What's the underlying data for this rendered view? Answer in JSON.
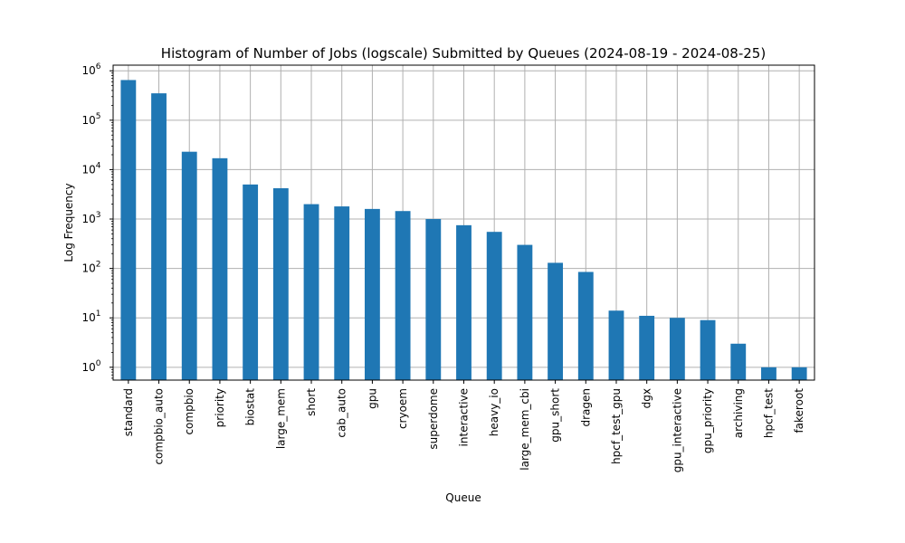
{
  "chart_data": {
    "type": "bar",
    "title": "Histogram of Number of Jobs (logscale) Submitted by Queues (2024-08-19 - 2024-08-25)",
    "xlabel": "Queue",
    "ylabel": "Log Frequency",
    "yscale": "log",
    "ylim": [
      0.55,
      1300000
    ],
    "yticks": [
      {
        "value": 1,
        "base": "10",
        "exp": "0"
      },
      {
        "value": 10,
        "base": "10",
        "exp": "1"
      },
      {
        "value": 100,
        "base": "10",
        "exp": "2"
      },
      {
        "value": 1000,
        "base": "10",
        "exp": "3"
      },
      {
        "value": 10000,
        "base": "10",
        "exp": "4"
      },
      {
        "value": 100000,
        "base": "10",
        "exp": "5"
      },
      {
        "value": 1000000,
        "base": "10",
        "exp": "6"
      }
    ],
    "grid": true,
    "bar_color": "#1f77b4",
    "categories": [
      "standard",
      "compbio_auto",
      "compbio",
      "priority",
      "biostat",
      "large_mem",
      "short",
      "cab_auto",
      "gpu",
      "cryoem",
      "superdome",
      "interactive",
      "heavy_io",
      "large_mem_cbi",
      "gpu_short",
      "dragen",
      "hpcf_test_gpu",
      "dgx",
      "gpu_interactive",
      "gpu_priority",
      "archiving",
      "hpcf_test",
      "fakeroot"
    ],
    "values": [
      650000,
      350000,
      23000,
      17000,
      5000,
      4200,
      2000,
      1800,
      1600,
      1450,
      1000,
      750,
      550,
      300,
      130,
      85,
      14,
      11,
      10,
      9,
      3,
      1,
      1
    ]
  }
}
